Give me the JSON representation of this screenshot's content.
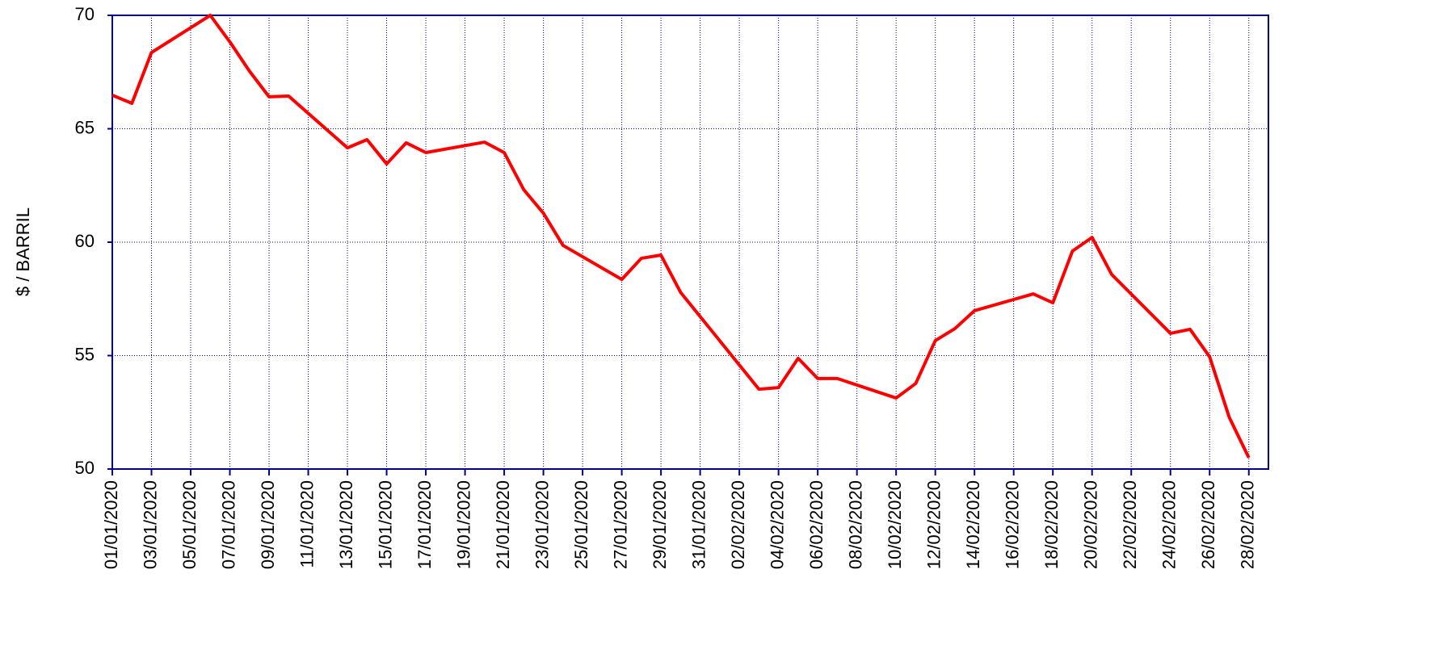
{
  "chart_data": {
    "type": "line",
    "y_label": "$ / BARRIL",
    "x": [
      "01/01/2020",
      "02/01/2020",
      "03/01/2020",
      "06/01/2020",
      "07/01/2020",
      "08/01/2020",
      "09/01/2020",
      "10/01/2020",
      "13/01/2020",
      "14/01/2020",
      "15/01/2020",
      "16/01/2020",
      "17/01/2020",
      "20/01/2020",
      "21/01/2020",
      "22/01/2020",
      "23/01/2020",
      "24/01/2020",
      "27/01/2020",
      "28/01/2020",
      "29/01/2020",
      "30/01/2020",
      "03/02/2020",
      "04/02/2020",
      "05/02/2020",
      "06/02/2020",
      "07/02/2020",
      "10/02/2020",
      "11/02/2020",
      "12/02/2020",
      "13/02/2020",
      "14/02/2020",
      "17/02/2020",
      "18/02/2020",
      "19/02/2020",
      "20/02/2020",
      "21/02/2020",
      "24/02/2020",
      "25/02/2020",
      "26/02/2020",
      "27/02/2020",
      "28/02/2020"
    ],
    "series": [
      {
        "color": "#ff0000",
        "values": [
          66.48,
          66.12,
          68.36,
          70.0,
          68.83,
          67.54,
          66.41,
          66.44,
          64.16,
          64.52,
          63.45,
          64.38,
          63.95,
          64.41,
          63.95,
          62.31,
          61.28,
          59.86,
          58.36,
          59.29,
          59.43,
          57.79,
          53.52,
          53.59,
          54.88,
          53.99,
          53.99,
          53.13,
          53.77,
          55.66,
          56.19,
          56.98,
          57.72,
          57.33,
          59.61,
          60.21,
          58.58,
          55.98,
          56.16,
          54.95,
          52.28,
          50.5
        ]
      }
    ],
    "xlim": [
      "01/01/2020",
      "29/02/2020"
    ],
    "xticks": [
      "01/01/2020",
      "03/01/2020",
      "05/01/2020",
      "07/01/2020",
      "09/01/2020",
      "11/01/2020",
      "13/01/2020",
      "15/01/2020",
      "17/01/2020",
      "19/01/2020",
      "21/01/2020",
      "23/01/2020",
      "25/01/2020",
      "27/01/2020",
      "29/01/2020",
      "31/01/2020",
      "02/02/2020",
      "04/02/2020",
      "06/02/2020",
      "08/02/2020",
      "10/02/2020",
      "12/02/2020",
      "14/02/2020",
      "16/02/2020",
      "18/02/2020",
      "20/02/2020",
      "22/02/2020",
      "24/02/2020",
      "26/02/2020",
      "28/02/2020"
    ],
    "ylim": [
      50,
      70
    ],
    "yticks": [
      50,
      55,
      60,
      65,
      70
    ],
    "grid": true
  }
}
